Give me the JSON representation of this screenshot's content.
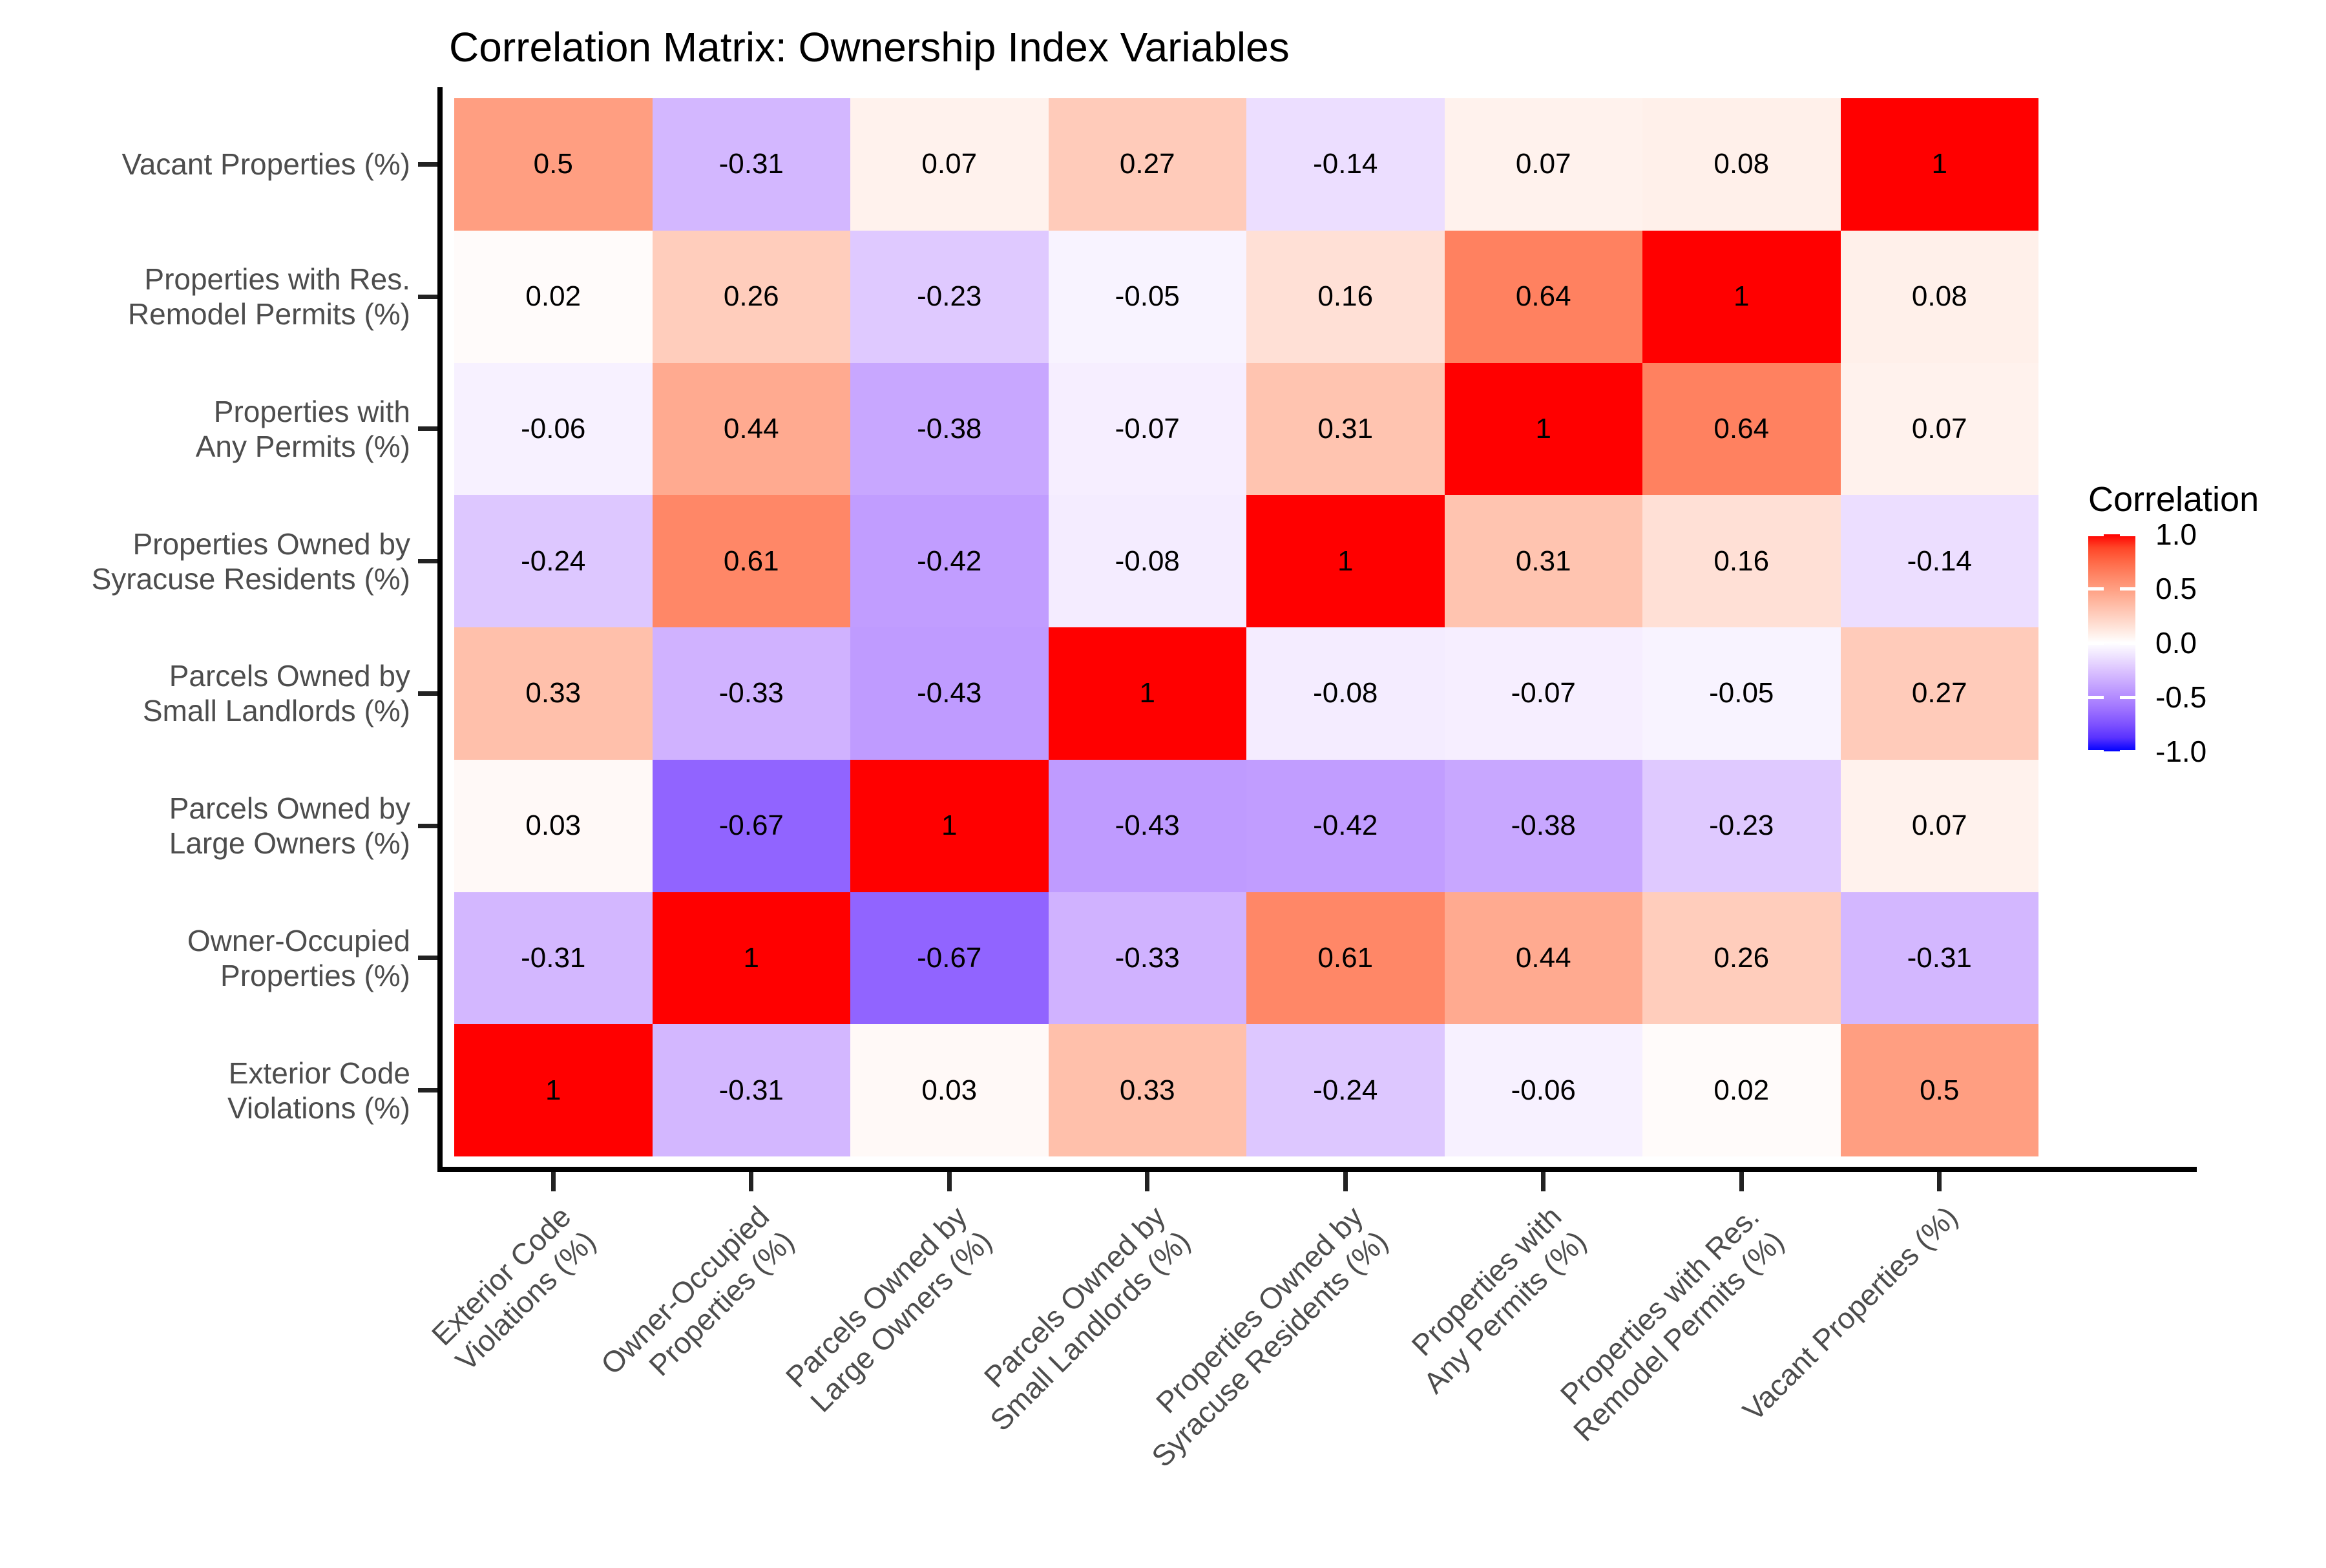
{
  "title": "Correlation Matrix: Ownership Index Variables",
  "legend": {
    "title": "Correlation",
    "tick_labels": [
      "1.0",
      "0.5",
      "0.0",
      "-0.5",
      "-1.0"
    ],
    "tick_values": [
      1,
      0.5,
      0,
      -0.5,
      -1
    ]
  },
  "chart_data": {
    "type": "heatmap",
    "title": "Correlation Matrix: Ownership Index Variables",
    "x_labels": [
      "Exterior Code\nViolations (%)",
      "Owner-Occupied\nProperties (%)",
      "Parcels Owned by\nLarge Owners (%)",
      "Parcels Owned by\nSmall Landlords (%)",
      "Properties Owned by\nSyracuse Residents (%)",
      "Properties with\nAny Permits (%)",
      "Properties with Res.\nRemodel Permits (%)",
      "Vacant Properties (%)"
    ],
    "y_labels_top_to_bottom": [
      "Vacant Properties (%)",
      "Properties with Res.\nRemodel Permits (%)",
      "Properties with\nAny Permits (%)",
      "Properties Owned by\nSyracuse Residents (%)",
      "Parcels Owned by\nSmall Landlords (%)",
      "Parcels Owned by\nLarge Owners (%)",
      "Owner-Occupied\nProperties (%)",
      "Exterior Code\nViolations (%)"
    ],
    "matrix_rows_top_to_bottom": [
      [
        0.5,
        -0.31,
        0.07,
        0.27,
        -0.14,
        0.07,
        0.08,
        1
      ],
      [
        0.02,
        0.26,
        -0.23,
        -0.05,
        0.16,
        0.64,
        1,
        0.08
      ],
      [
        -0.06,
        0.44,
        -0.38,
        -0.07,
        0.31,
        1,
        0.64,
        0.07
      ],
      [
        -0.24,
        0.61,
        -0.42,
        -0.08,
        1,
        0.31,
        0.16,
        -0.14
      ],
      [
        0.33,
        -0.33,
        -0.43,
        1,
        -0.08,
        -0.07,
        -0.05,
        0.27
      ],
      [
        0.03,
        -0.67,
        1,
        -0.43,
        -0.42,
        -0.38,
        -0.23,
        0.07
      ],
      [
        -0.31,
        1,
        -0.67,
        -0.33,
        0.61,
        0.44,
        0.26,
        -0.31
      ],
      [
        1,
        -0.31,
        0.03,
        0.33,
        -0.24,
        -0.06,
        0.02,
        0.5
      ]
    ],
    "color_scale": {
      "type": "diverging",
      "low": "#0000FF",
      "mid": "#FFFFFF",
      "high": "#FF0000",
      "domain": [
        -1,
        1
      ],
      "interpolation": "lab"
    },
    "legend": {
      "title": "Correlation",
      "position": "right",
      "ticks": [
        1.0,
        0.5,
        0.0,
        -0.5,
        -1.0
      ]
    }
  }
}
